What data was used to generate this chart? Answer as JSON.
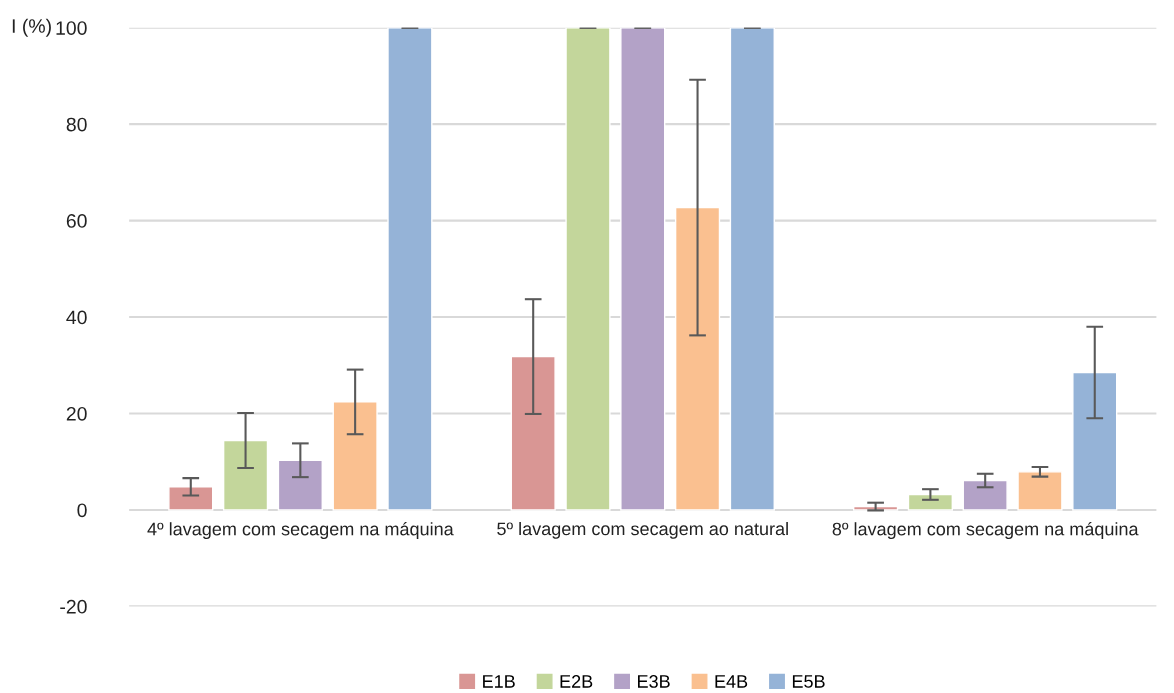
{
  "chart_data": {
    "type": "bar",
    "ylabel": "I (%)",
    "categories": [
      "4º lavagem com secagem na máquina",
      "5º lavagem com secagem ao natural",
      "8º lavagem com secagem na máquina"
    ],
    "series": [
      {
        "name": "E1B",
        "color": "#d99694",
        "values": [
          4.8,
          31.8,
          0.7
        ],
        "errors": [
          1.8,
          11.9,
          0.8
        ]
      },
      {
        "name": "E2B",
        "color": "#c3d69b",
        "values": [
          14.4,
          100,
          3.2
        ],
        "errors": [
          5.7,
          0,
          1.1
        ]
      },
      {
        "name": "E3B",
        "color": "#b3a2c7",
        "values": [
          10.3,
          100,
          6.1
        ],
        "errors": [
          3.5,
          0,
          1.4
        ]
      },
      {
        "name": "E4B",
        "color": "#fac090",
        "values": [
          22.4,
          62.7,
          7.9
        ],
        "errors": [
          6.7,
          26.5,
          1.0
        ]
      },
      {
        "name": "E5B",
        "color": "#95b3d7",
        "values": [
          100,
          100,
          28.5
        ],
        "errors": [
          0,
          0,
          9.5
        ]
      }
    ],
    "ylim": [
      -20,
      100
    ],
    "yticks": [
      -20,
      0,
      20,
      40,
      60,
      80,
      100
    ],
    "grid": "y",
    "legend": "bottom"
  }
}
